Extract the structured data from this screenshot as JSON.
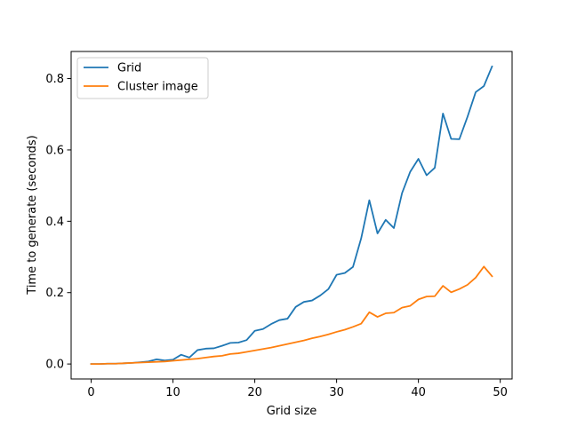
{
  "chart_data": {
    "type": "line",
    "title": "",
    "xlabel": "Grid size",
    "ylabel": "Time to generate (seconds)",
    "xlim": [
      -2.45,
      51.45
    ],
    "ylim": [
      -0.042,
      0.876
    ],
    "xticks": [
      0,
      10,
      20,
      30,
      40,
      50
    ],
    "yticks": [
      0.0,
      0.2,
      0.4,
      0.6,
      0.8
    ],
    "xtick_labels": [
      "0",
      "10",
      "20",
      "30",
      "40",
      "50"
    ],
    "ytick_labels": [
      "0.0",
      "0.2",
      "0.4",
      "0.6",
      "0.8"
    ],
    "grid": false,
    "legend": "top-left",
    "x": [
      0,
      1,
      2,
      3,
      4,
      5,
      6,
      7,
      8,
      9,
      10,
      11,
      12,
      13,
      14,
      15,
      16,
      17,
      18,
      19,
      20,
      21,
      22,
      23,
      24,
      25,
      26,
      27,
      28,
      29,
      30,
      31,
      32,
      33,
      34,
      35,
      36,
      37,
      38,
      39,
      40,
      41,
      42,
      43,
      44,
      45,
      46,
      47,
      48,
      49
    ],
    "series": [
      {
        "name": "Grid",
        "color": "#1f77b4",
        "values": [
          0.0,
          0.0,
          0.001,
          0.001,
          0.002,
          0.003,
          0.005,
          0.007,
          0.013,
          0.01,
          0.012,
          0.026,
          0.018,
          0.039,
          0.043,
          0.044,
          0.051,
          0.059,
          0.06,
          0.067,
          0.093,
          0.098,
          0.112,
          0.123,
          0.127,
          0.16,
          0.174,
          0.178,
          0.192,
          0.21,
          0.25,
          0.255,
          0.272,
          0.352,
          0.459,
          0.366,
          0.404,
          0.381,
          0.479,
          0.539,
          0.575,
          0.529,
          0.55,
          0.702,
          0.631,
          0.63,
          0.693,
          0.762,
          0.779,
          0.834
        ]
      },
      {
        "name": "Cluster image",
        "color": "#ff7f0e",
        "values": [
          0.0,
          0.0,
          0.001,
          0.001,
          0.002,
          0.003,
          0.004,
          0.005,
          0.006,
          0.007,
          0.009,
          0.011,
          0.013,
          0.015,
          0.018,
          0.021,
          0.023,
          0.028,
          0.03,
          0.034,
          0.038,
          0.042,
          0.046,
          0.051,
          0.056,
          0.061,
          0.066,
          0.072,
          0.077,
          0.083,
          0.09,
          0.096,
          0.104,
          0.113,
          0.145,
          0.132,
          0.142,
          0.144,
          0.158,
          0.163,
          0.181,
          0.189,
          0.19,
          0.219,
          0.201,
          0.21,
          0.222,
          0.242,
          0.273,
          0.246
        ]
      }
    ]
  }
}
